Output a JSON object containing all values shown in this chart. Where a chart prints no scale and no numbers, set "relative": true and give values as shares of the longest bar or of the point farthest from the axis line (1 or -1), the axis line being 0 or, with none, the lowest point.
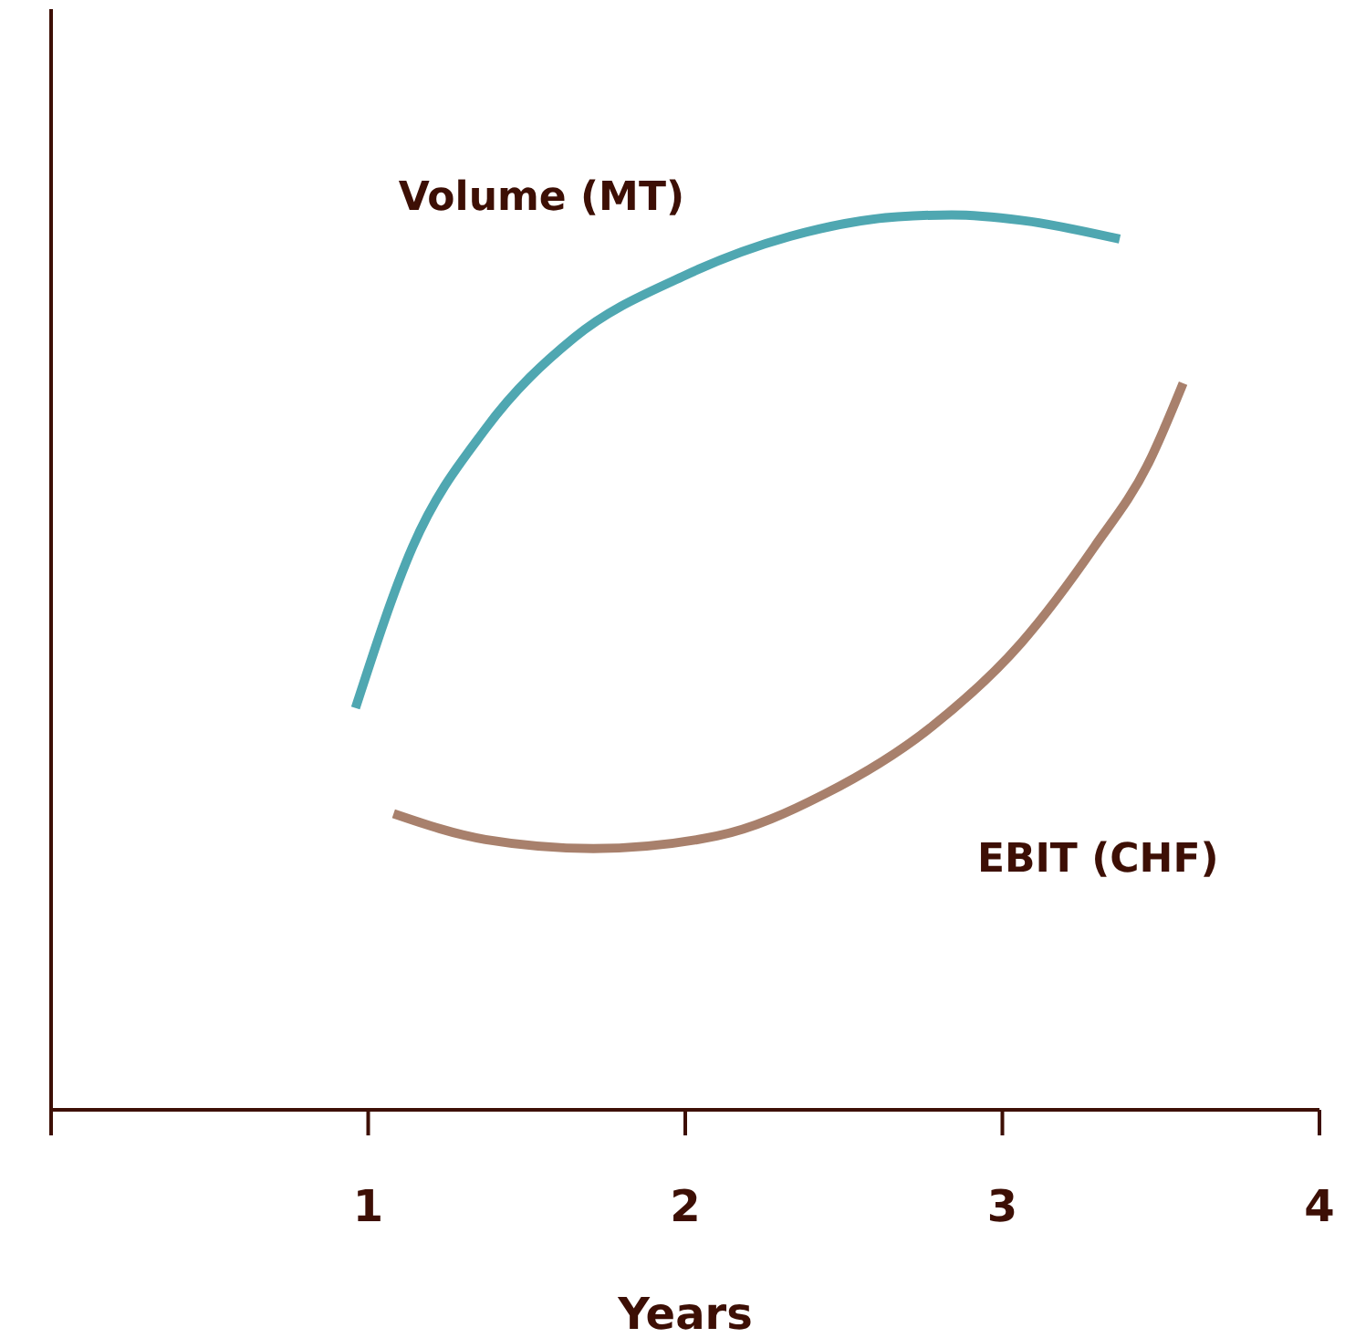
{
  "chart_data": {
    "type": "line",
    "relative": true,
    "xlabel": "Years",
    "xlim": [
      0,
      4
    ],
    "xticks": [
      {
        "value": 0,
        "label": null
      },
      1,
      2,
      3,
      4
    ],
    "marker": "none",
    "line_style": "solid",
    "series": [
      {
        "name": "Volume (MT)",
        "color": "#4fa7b1",
        "x": [
          0.96,
          1.14,
          1.37,
          1.65,
          1.99,
          2.33,
          2.67,
          2.84,
          3.06,
          3.37
        ],
        "values": [
          0.449,
          0.629,
          0.761,
          0.863,
          0.931,
          0.976,
          0.998,
          1.0,
          0.994,
          0.973
        ]
      },
      {
        "name": "EBIT (CHF)",
        "color": "#a8806c",
        "x": [
          1.08,
          1.37,
          1.71,
          2.1,
          2.44,
          2.78,
          3.06,
          3.29,
          3.46,
          3.57
        ],
        "values": [
          0.331,
          0.302,
          0.292,
          0.306,
          0.353,
          0.429,
          0.522,
          0.629,
          0.722,
          0.812
        ]
      }
    ]
  }
}
